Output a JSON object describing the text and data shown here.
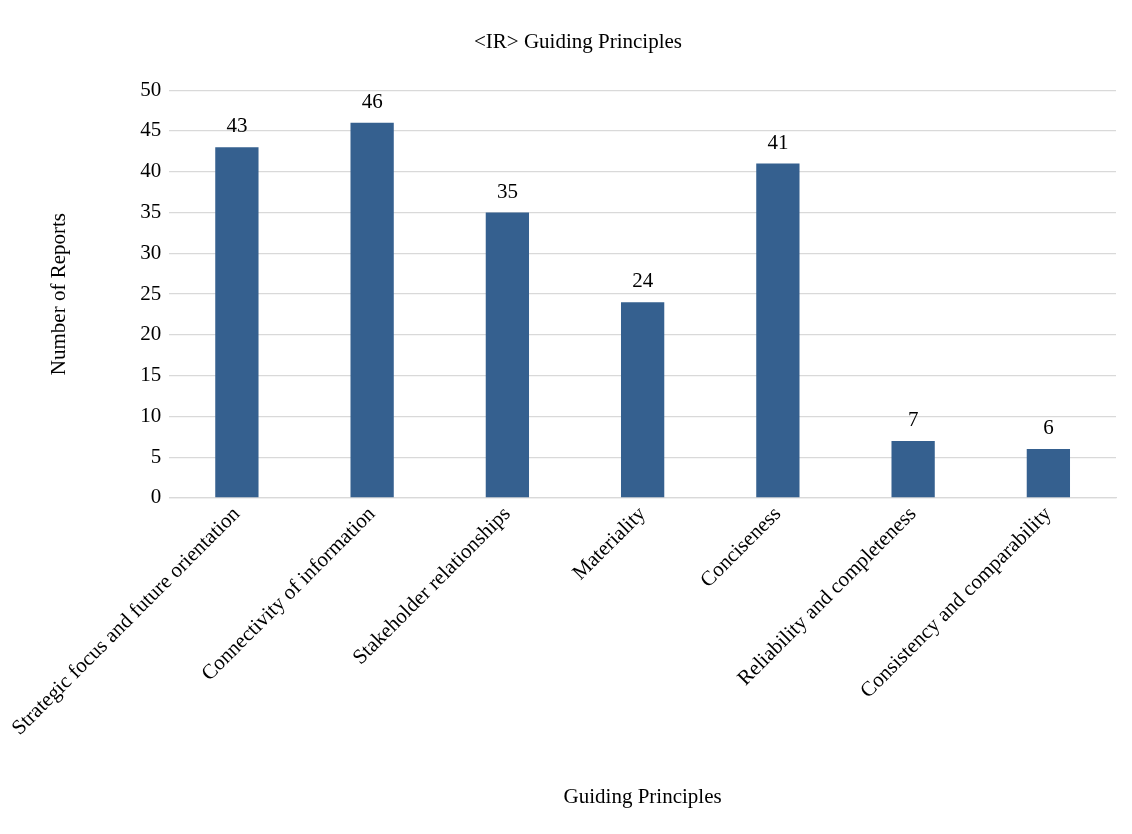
{
  "chart_data": {
    "type": "bar",
    "title": "<IR> Guiding Principles",
    "xlabel": "Guiding Principles",
    "ylabel": "Number of Reports",
    "categories": [
      "Strategic focus and future orientation",
      "Connectivity of information",
      "Stakeholder relationships",
      "Materiality",
      "Conciseness",
      "Reliability and completeness",
      "Consistency and comparability"
    ],
    "values": [
      43,
      46,
      35,
      24,
      41,
      7,
      6
    ],
    "color": "#35608f",
    "ylim": [
      0,
      50
    ],
    "yticks": [
      0,
      5,
      10,
      15,
      20,
      25,
      30,
      35,
      40,
      45,
      50
    ],
    "grid": "y",
    "data_labels": true,
    "legend": false
  }
}
